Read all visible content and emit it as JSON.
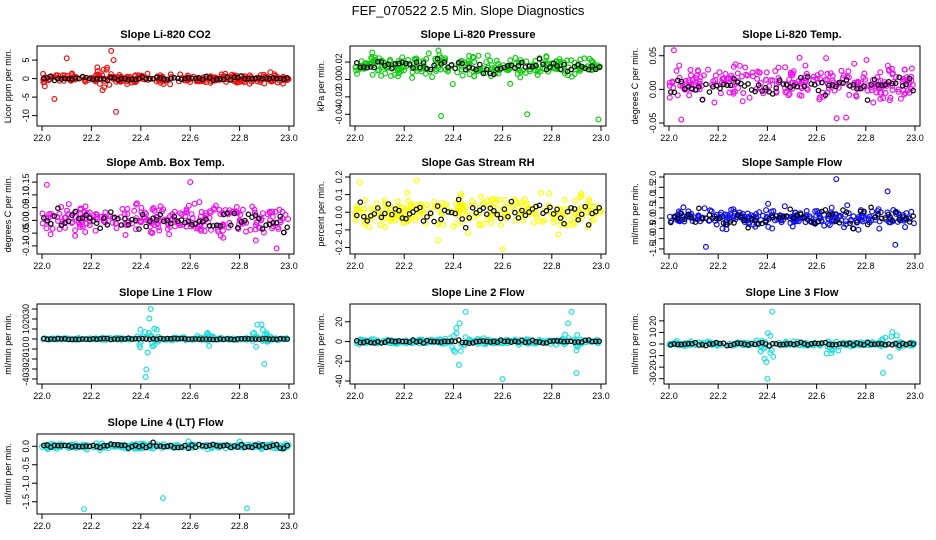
{
  "figure_title": "FEF_070522  2.5 Min. Slope Diagnostics",
  "colors": {
    "red": "#ee1111",
    "green": "#11cc11",
    "magenta": "#ee11ee",
    "yellow": "#ffff00",
    "blue": "#1111ee",
    "cyan": "#22dddd",
    "overlay": "#000000"
  },
  "chart_data": [
    {
      "type": "scatter",
      "title": "Slope Li-820 CO2",
      "ylabel": "Licor ppm per min.",
      "xlim": [
        22.0,
        23.0
      ],
      "xticks": [
        "22.0",
        "22.2",
        "22.4",
        "22.6",
        "22.8",
        "23.0"
      ],
      "ylim": [
        -12,
        8
      ],
      "yticks": [
        "-10",
        "-5",
        "0",
        "5"
      ],
      "color": "red",
      "series": [
        {
          "name": "points",
          "spread": 1.0,
          "bursts": [
            {
              "x": 22.25,
              "amp": 4
            }
          ]
        },
        {
          "name": "overlay",
          "spread": 0.4
        }
      ],
      "outliers": [
        {
          "x": 22.05,
          "y": -5.5
        },
        {
          "x": 22.1,
          "y": 5.5
        },
        {
          "x": 22.28,
          "y": 7.5
        },
        {
          "x": 22.3,
          "y": -9
        },
        {
          "x": 22.29,
          "y": 5
        }
      ]
    },
    {
      "type": "scatter",
      "title": "Slope Li-820 Pressure",
      "ylabel": "kPa per min.",
      "xlim": [
        22.0,
        23.0
      ],
      "xticks": [
        "22.0",
        "22.2",
        "22.4",
        "22.6",
        "22.8",
        "23.0"
      ],
      "ylim": [
        -0.05,
        0.035
      ],
      "yticks": [
        "-0.04",
        "-0.02",
        "0.00",
        "0.02"
      ],
      "color": "green",
      "series": [
        {
          "name": "points",
          "center": 0.015,
          "spread": 0.01
        },
        {
          "name": "overlay",
          "center": 0.015,
          "spread": 0.006
        }
      ],
      "outliers": [
        {
          "x": 22.35,
          "y": -0.042
        },
        {
          "x": 22.7,
          "y": -0.04
        },
        {
          "x": 22.99,
          "y": -0.046
        },
        {
          "x": 22.07,
          "y": 0.031
        },
        {
          "x": 22.3,
          "y": 0.03
        }
      ]
    },
    {
      "type": "scatter",
      "title": "Slope Li-820 Temp.",
      "ylabel": "degrees C per min.",
      "xlim": [
        22.0,
        23.0
      ],
      "xticks": [
        "22.0",
        "22.2",
        "22.4",
        "22.6",
        "22.8",
        "23.0"
      ],
      "ylim": [
        -0.05,
        0.06
      ],
      "yticks": [
        "-0.05",
        "0.00",
        "0.05"
      ],
      "color": "magenta",
      "series": [
        {
          "name": "points",
          "center": 0.01,
          "spread": 0.022
        },
        {
          "name": "overlay",
          "center": 0.005,
          "spread": 0.012
        }
      ],
      "outliers": [
        {
          "x": 22.02,
          "y": 0.058
        },
        {
          "x": 22.05,
          "y": -0.045
        },
        {
          "x": 22.72,
          "y": -0.042
        }
      ]
    },
    {
      "type": "scatter",
      "title": "Slope Amb. Box Temp.",
      "ylabel": "degrees C per min.",
      "xlim": [
        22.0,
        23.0
      ],
      "xticks": [
        "22.0",
        "22.2",
        "22.4",
        "22.6",
        "22.8",
        "23.0"
      ],
      "ylim": [
        -0.12,
        0.17
      ],
      "yticks": [
        "-0.10",
        "-0.05",
        "0.00",
        "0.05",
        "0.10",
        "0.15"
      ],
      "color": "magenta",
      "series": [
        {
          "name": "points",
          "center": 0.0,
          "spread": 0.05
        },
        {
          "name": "overlay",
          "center": 0.0,
          "spread": 0.035
        }
      ],
      "outliers": [
        {
          "x": 22.6,
          "y": 0.15
        },
        {
          "x": 22.95,
          "y": -0.11
        },
        {
          "x": 22.02,
          "y": 0.14
        }
      ]
    },
    {
      "type": "scatter",
      "title": "Slope Gas Stream RH",
      "ylabel": "percent per min.",
      "xlim": [
        22.0,
        23.0
      ],
      "xticks": [
        "22.0",
        "22.2",
        "22.4",
        "22.6",
        "22.8",
        "23.0"
      ],
      "ylim": [
        -0.22,
        0.2
      ],
      "yticks": [
        "-0.2",
        "-0.1",
        "0.0",
        "0.1",
        "0.2"
      ],
      "color": "yellow",
      "series": [
        {
          "name": "points",
          "center": 0.0,
          "spread": 0.07
        },
        {
          "name": "overlay",
          "center": 0.0,
          "spread": 0.05
        }
      ],
      "outliers": [
        {
          "x": 22.25,
          "y": 0.18
        },
        {
          "x": 22.6,
          "y": -0.21
        },
        {
          "x": 22.02,
          "y": 0.17
        }
      ]
    },
    {
      "type": "scatter",
      "title": "Slope Sample Flow",
      "ylabel": "ml/min per min.",
      "xlim": [
        22.0,
        23.0
      ],
      "xticks": [
        "22.0",
        "22.2",
        "22.4",
        "22.6",
        "22.8",
        "23.0"
      ],
      "ylim": [
        -1.6,
        2.0
      ],
      "yticks": [
        "-1.5",
        "-1.0",
        "-0.5",
        "0.0",
        "0.5",
        "1.0",
        "1.5",
        "2.0"
      ],
      "color": "blue",
      "series": [
        {
          "name": "points",
          "center": 0.0,
          "spread": 0.35,
          "bursts": [
            {
              "x": 22.88,
              "amp": 0.9
            }
          ]
        },
        {
          "name": "overlay",
          "center": 0.0,
          "spread": 0.35
        }
      ],
      "outliers": [
        {
          "x": 22.68,
          "y": 1.9
        },
        {
          "x": 22.15,
          "y": -1.4
        },
        {
          "x": 22.92,
          "y": -1.3
        }
      ]
    },
    {
      "type": "scatter",
      "title": "Slope Line 1 Flow",
      "ylabel": "ml/min per min.",
      "xlim": [
        22.0,
        23.0
      ],
      "xticks": [
        "22.0",
        "22.2",
        "22.4",
        "22.6",
        "22.8",
        "23.0"
      ],
      "ylim": [
        -42,
        32
      ],
      "yticks": [
        "-40",
        "-30",
        "-20",
        "-10",
        "0",
        "10",
        "20",
        "30"
      ],
      "color": "cyan",
      "series": [
        {
          "name": "points",
          "center": 0.0,
          "spread": 1.0,
          "bursts": [
            {
              "x": 22.43,
              "amp": 20
            },
            {
              "x": 22.88,
              "amp": 14
            },
            {
              "x": 22.66,
              "amp": 8
            }
          ]
        },
        {
          "name": "overlay",
          "center": 0.0,
          "spread": 0.6
        }
      ],
      "outliers": [
        {
          "x": 22.42,
          "y": -38
        },
        {
          "x": 22.44,
          "y": 30
        },
        {
          "x": 22.9,
          "y": -25
        }
      ]
    },
    {
      "type": "scatter",
      "title": "Slope Line 2 Flow",
      "ylabel": "ml/min per min.",
      "xlim": [
        22.0,
        23.0
      ],
      "xticks": [
        "22.0",
        "22.2",
        "22.4",
        "22.6",
        "22.8",
        "23.0"
      ],
      "ylim": [
        -40,
        35
      ],
      "yticks": [
        "-40",
        "-20",
        "0",
        "20"
      ],
      "color": "cyan",
      "series": [
        {
          "name": "points",
          "center": 0.0,
          "spread": 2.0,
          "bursts": [
            {
              "x": 22.42,
              "amp": 18
            },
            {
              "x": 22.88,
              "amp": 15
            }
          ]
        },
        {
          "name": "overlay",
          "center": 0.0,
          "spread": 1.5
        }
      ],
      "outliers": [
        {
          "x": 22.45,
          "y": 30
        },
        {
          "x": 22.88,
          "y": 30
        },
        {
          "x": 22.6,
          "y": -38
        },
        {
          "x": 22.9,
          "y": -32
        }
      ]
    },
    {
      "type": "scatter",
      "title": "Slope Line 3 Flow",
      "ylabel": "ml/min per min.",
      "xlim": [
        22.0,
        23.0
      ],
      "xticks": [
        "22.0",
        "22.2",
        "22.4",
        "22.6",
        "22.8",
        "23.0"
      ],
      "ylim": [
        -32,
        32
      ],
      "yticks": [
        "-30",
        "-20",
        "-10",
        "0",
        "10",
        "20"
      ],
      "color": "cyan",
      "series": [
        {
          "name": "points",
          "center": 0.0,
          "spread": 1.5,
          "bursts": [
            {
              "x": 22.4,
              "amp": 16
            },
            {
              "x": 22.9,
              "amp": 14
            },
            {
              "x": 22.66,
              "amp": 8
            }
          ]
        },
        {
          "name": "overlay",
          "center": 0.0,
          "spread": 1.2
        }
      ],
      "outliers": [
        {
          "x": 22.4,
          "y": -30
        },
        {
          "x": 22.42,
          "y": 28
        },
        {
          "x": 22.87,
          "y": -25
        }
      ]
    },
    {
      "type": "scatter",
      "title": "Slope Line 4 (LT) Flow",
      "ylabel": "ml/min per min.",
      "xlim": [
        22.0,
        23.0
      ],
      "xticks": [
        "22.0",
        "22.2",
        "22.4",
        "22.6",
        "22.8",
        "23.0"
      ],
      "ylim": [
        -1.75,
        0.25
      ],
      "yticks": [
        "-1.5",
        "-1.0",
        "-0.5",
        "0.0"
      ],
      "color": "cyan",
      "series": [
        {
          "name": "points",
          "center": 0.0,
          "spread": 0.06
        },
        {
          "name": "overlay",
          "center": 0.0,
          "spread": 0.05
        }
      ],
      "outliers": [
        {
          "x": 22.17,
          "y": -1.7
        },
        {
          "x": 22.49,
          "y": -1.4
        },
        {
          "x": 22.83,
          "y": -1.68
        },
        {
          "x": 22.8,
          "y": 0.12
        }
      ]
    }
  ]
}
